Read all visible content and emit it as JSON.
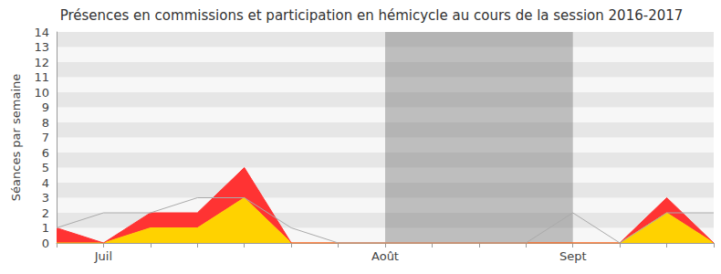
{
  "chart_data": {
    "type": "area",
    "title": "Présences en commissions et participation en hémicycle au cours de la session 2016-2017",
    "y_label": "Séances par semaine",
    "categories": [
      null,
      "Juil",
      null,
      null,
      null,
      null,
      null,
      "Août",
      null,
      null,
      null,
      "Sept",
      null,
      null,
      null
    ],
    "series": [
      {
        "type": "area",
        "color": "#ffd200",
        "values": [
          0,
          0,
          1,
          1,
          3,
          0,
          0,
          0,
          0,
          0,
          0,
          0,
          0,
          2,
          0
        ]
      },
      {
        "type": "area",
        "color": "#ff3333",
        "values": [
          1,
          0,
          1,
          1,
          2,
          0,
          0,
          0,
          0,
          0,
          0,
          0,
          0,
          1,
          0
        ]
      },
      {
        "type": "line",
        "color": "#aaaaaa",
        "values": [
          1,
          2,
          2,
          3,
          3,
          1,
          0,
          0,
          0,
          0,
          0,
          2,
          0,
          2,
          2
        ]
      }
    ],
    "stacked": true,
    "ylim": [
      0,
      14
    ],
    "yticks": [
      0,
      1,
      2,
      3,
      4,
      5,
      6,
      7,
      8,
      9,
      10,
      11,
      12,
      13,
      14
    ],
    "grid": true
  }
}
